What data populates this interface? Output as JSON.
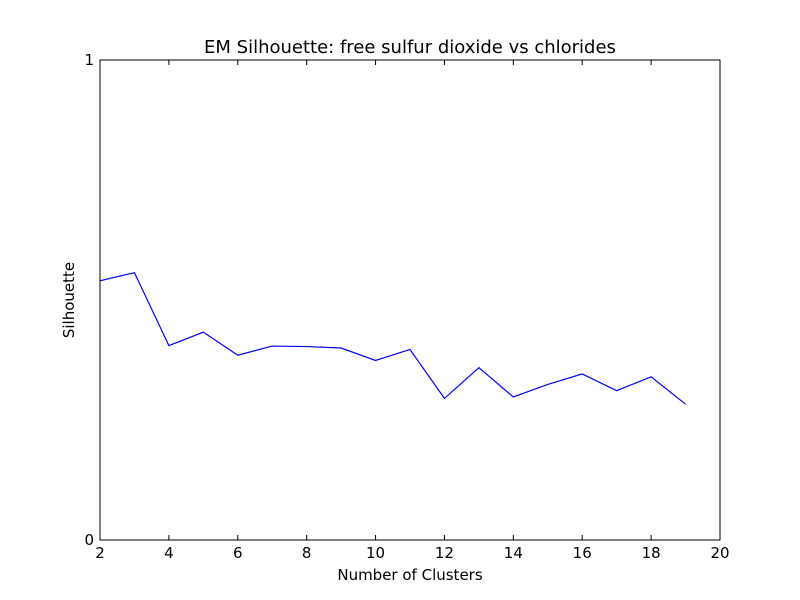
{
  "chart_data": {
    "type": "line",
    "title": "EM Silhouette: free sulfur dioxide vs chlorides",
    "xlabel": "Number of Clusters",
    "ylabel": "Silhouette",
    "xlim": [
      2,
      20
    ],
    "ylim": [
      0,
      1
    ],
    "xticks": [
      2,
      4,
      6,
      8,
      10,
      12,
      14,
      16,
      18,
      20
    ],
    "yticks": [
      0,
      1
    ],
    "xtick_labels": [
      "2",
      "4",
      "6",
      "8",
      "10",
      "12",
      "14",
      "16",
      "18",
      "20"
    ],
    "ytick_labels": [
      "0",
      "1"
    ],
    "grid": false,
    "series": [
      {
        "color": "#0000ff",
        "x": [
          2,
          3,
          4,
          5,
          6,
          7,
          8,
          9,
          10,
          11,
          12,
          13,
          14,
          15,
          16,
          17,
          18,
          19
        ],
        "y": [
          0.54,
          0.557,
          0.405,
          0.433,
          0.385,
          0.404,
          0.403,
          0.4,
          0.374,
          0.397,
          0.295,
          0.359,
          0.298,
          0.324,
          0.346,
          0.311,
          0.34,
          0.283
        ]
      }
    ]
  }
}
